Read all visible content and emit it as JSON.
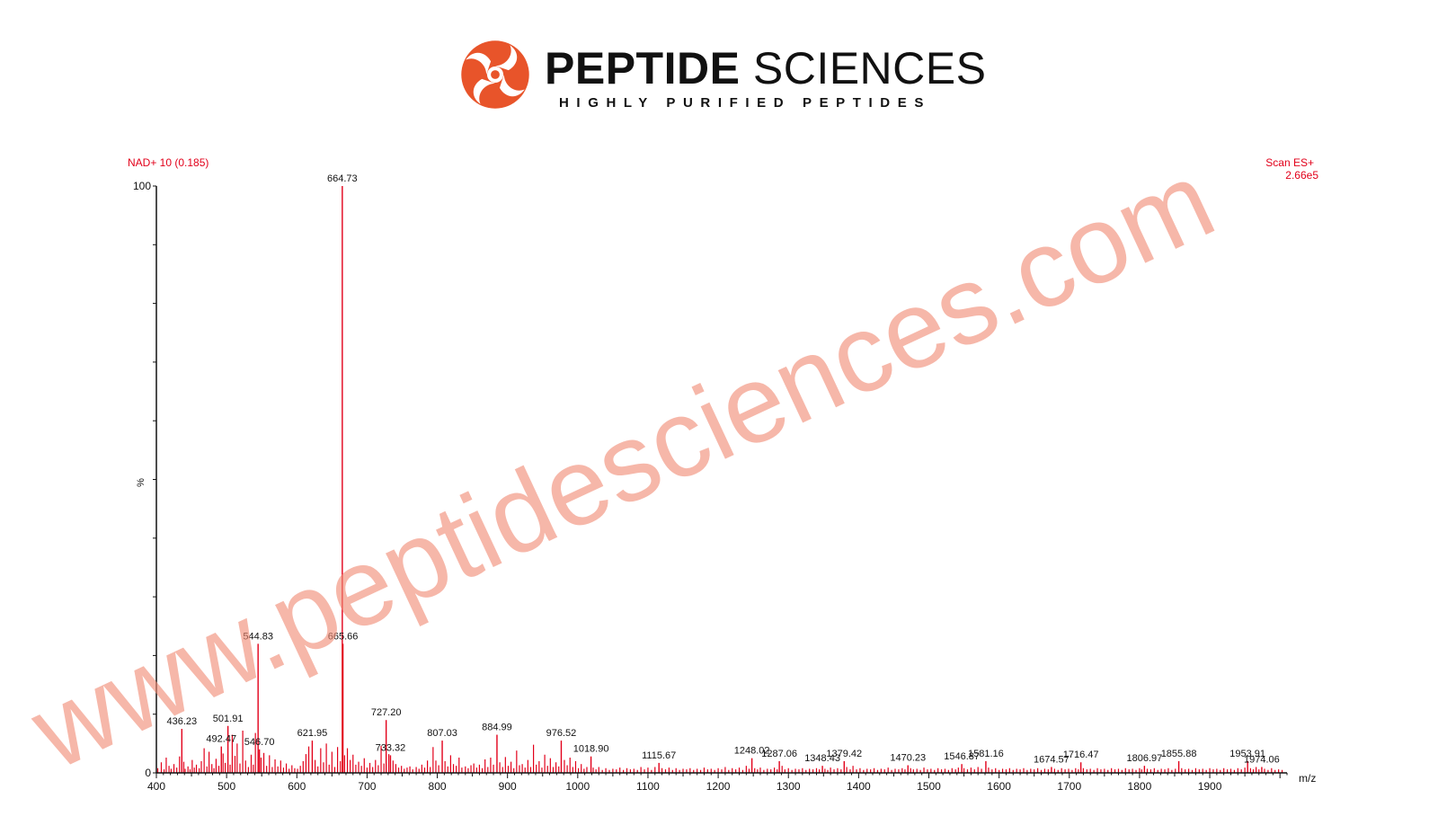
{
  "brand": {
    "name_bold": "PEPTIDE",
    "name_light": "SCIENCES",
    "tagline": "HIGHLY PURIFIED PEPTIDES",
    "logo_icon": "spiral-swirl-logo-icon",
    "logo_color": "#e8542a"
  },
  "watermark": {
    "text": "www.peptidesciences.com",
    "color": "#f08a75"
  },
  "chart_data": {
    "type": "bar",
    "title": "NAD+ 10 (0.185)",
    "scan_label": "Scan ES+",
    "scan_intensity": "2.66e5",
    "xlabel": "m/z",
    "ylabel": "%",
    "xlim": [
      400,
      2010
    ],
    "ylim": [
      0,
      100
    ],
    "x_ticks": [
      400,
      500,
      600,
      700,
      800,
      900,
      1000,
      1100,
      1200,
      1300,
      1400,
      1500,
      1600,
      1700,
      1800,
      1900
    ],
    "y_ticks": [
      0,
      100
    ],
    "series_color": "#e2001a",
    "peaks": [
      {
        "mz": 436.23,
        "intensity": 7.5,
        "label": "436.23"
      },
      {
        "mz": 492.47,
        "intensity": 4.5,
        "label": "492.47"
      },
      {
        "mz": 501.91,
        "intensity": 8.0,
        "label": "501.91"
      },
      {
        "mz": 544.83,
        "intensity": 22.0,
        "label": "544.83"
      },
      {
        "mz": 546.7,
        "intensity": 4.0,
        "label": "546.70"
      },
      {
        "mz": 621.95,
        "intensity": 5.5,
        "label": "621.95"
      },
      {
        "mz": 664.73,
        "intensity": 100,
        "label": "664.73"
      },
      {
        "mz": 665.66,
        "intensity": 22.0,
        "label": "665.66"
      },
      {
        "mz": 727.2,
        "intensity": 9.0,
        "label": "727.20"
      },
      {
        "mz": 733.32,
        "intensity": 3.0,
        "label": "733.32"
      },
      {
        "mz": 807.03,
        "intensity": 5.5,
        "label": "807.03"
      },
      {
        "mz": 884.99,
        "intensity": 6.5,
        "label": "884.99"
      },
      {
        "mz": 976.52,
        "intensity": 5.5,
        "label": "976.52"
      },
      {
        "mz": 1018.9,
        "intensity": 2.8,
        "label": "1018.90"
      },
      {
        "mz": 1115.67,
        "intensity": 1.7,
        "label": "1115.67"
      },
      {
        "mz": 1248.02,
        "intensity": 2.5,
        "label": "1248.02"
      },
      {
        "mz": 1287.06,
        "intensity": 2.0,
        "label": "1287.06"
      },
      {
        "mz": 1348.43,
        "intensity": 1.2,
        "label": "1348.43"
      },
      {
        "mz": 1379.42,
        "intensity": 2.0,
        "label": "1379.42"
      },
      {
        "mz": 1470.23,
        "intensity": 1.3,
        "label": "1470.23"
      },
      {
        "mz": 1546.87,
        "intensity": 1.5,
        "label": "1546.87"
      },
      {
        "mz": 1581.16,
        "intensity": 2.0,
        "label": "1581.16"
      },
      {
        "mz": 1674.57,
        "intensity": 1.0,
        "label": "1674.57"
      },
      {
        "mz": 1716.47,
        "intensity": 1.8,
        "label": "1716.47"
      },
      {
        "mz": 1806.97,
        "intensity": 1.2,
        "label": "1806.97"
      },
      {
        "mz": 1855.88,
        "intensity": 2.0,
        "label": "1855.88"
      },
      {
        "mz": 1953.91,
        "intensity": 2.0,
        "label": "1953.91"
      },
      {
        "mz": 1974.06,
        "intensity": 1.0,
        "label": "1974.06"
      }
    ],
    "minor_peaks": [
      [
        402,
        0.8
      ],
      [
        407,
        1.8
      ],
      [
        411,
        0.6
      ],
      [
        414,
        2.6
      ],
      [
        418,
        1.2
      ],
      [
        421,
        0.7
      ],
      [
        425,
        1.5
      ],
      [
        429,
        0.9
      ],
      [
        433,
        2.8
      ],
      [
        439,
        1.9
      ],
      [
        441,
        0.7
      ],
      [
        445,
        1.1
      ],
      [
        448,
        0.6
      ],
      [
        451,
        2.2
      ],
      [
        454,
        0.9
      ],
      [
        457,
        1.4
      ],
      [
        461,
        0.8
      ],
      [
        464,
        2.0
      ],
      [
        468,
        4.2
      ],
      [
        472,
        1.1
      ],
      [
        475,
        3.6
      ],
      [
        479,
        1.5
      ],
      [
        482,
        0.8
      ],
      [
        485,
        2.4
      ],
      [
        489,
        1.2
      ],
      [
        495,
        3.3
      ],
      [
        498,
        1.7
      ],
      [
        505,
        1.4
      ],
      [
        508,
        6.5
      ],
      [
        512,
        2.9
      ],
      [
        515,
        5.0
      ],
      [
        519,
        1.6
      ],
      [
        523,
        7.2
      ],
      [
        527,
        2.1
      ],
      [
        531,
        1.0
      ],
      [
        535,
        3.1
      ],
      [
        538,
        1.4
      ],
      [
        541,
        6.8
      ],
      [
        549,
        2.6
      ],
      [
        553,
        3.4
      ],
      [
        557,
        1.2
      ],
      [
        561,
        3.0
      ],
      [
        565,
        1.0
      ],
      [
        569,
        2.3
      ],
      [
        573,
        1.1
      ],
      [
        577,
        2.1
      ],
      [
        581,
        0.9
      ],
      [
        585,
        1.6
      ],
      [
        589,
        0.7
      ],
      [
        593,
        1.3
      ],
      [
        597,
        0.8
      ],
      [
        601,
        0.7
      ],
      [
        605,
        1.2
      ],
      [
        609,
        2.0
      ],
      [
        613,
        3.2
      ],
      [
        617,
        4.5
      ],
      [
        626,
        2.2
      ],
      [
        630,
        1.1
      ],
      [
        634,
        4.2
      ],
      [
        638,
        1.8
      ],
      [
        642,
        5.0
      ],
      [
        646,
        1.4
      ],
      [
        650,
        3.6
      ],
      [
        654,
        1.0
      ],
      [
        658,
        4.4
      ],
      [
        662,
        2.0
      ],
      [
        668,
        3.0
      ],
      [
        672,
        4.2
      ],
      [
        676,
        2.2
      ],
      [
        680,
        3.1
      ],
      [
        684,
        1.4
      ],
      [
        688,
        1.9
      ],
      [
        692,
        1.2
      ],
      [
        696,
        2.5
      ],
      [
        700,
        0.9
      ],
      [
        704,
        1.7
      ],
      [
        708,
        1.0
      ],
      [
        712,
        2.2
      ],
      [
        716,
        1.3
      ],
      [
        720,
        4.6
      ],
      [
        724,
        1.6
      ],
      [
        731,
        3.2
      ],
      [
        737,
        2.1
      ],
      [
        741,
        1.5
      ],
      [
        745,
        0.9
      ],
      [
        749,
        1.2
      ],
      [
        753,
        0.7
      ],
      [
        757,
        0.9
      ],
      [
        761,
        1.1
      ],
      [
        765,
        0.6
      ],
      [
        770,
        1.0
      ],
      [
        774,
        0.7
      ],
      [
        778,
        1.4
      ],
      [
        782,
        0.9
      ],
      [
        786,
        2.1
      ],
      [
        790,
        1.0
      ],
      [
        794,
        4.4
      ],
      [
        798,
        2.1
      ],
      [
        802,
        1.3
      ],
      [
        811,
        2.0
      ],
      [
        815,
        1.1
      ],
      [
        819,
        3.0
      ],
      [
        823,
        1.5
      ],
      [
        827,
        1.2
      ],
      [
        831,
        2.6
      ],
      [
        835,
        0.9
      ],
      [
        840,
        1.1
      ],
      [
        844,
        0.8
      ],
      [
        848,
        1.3
      ],
      [
        852,
        1.6
      ],
      [
        856,
        0.9
      ],
      [
        860,
        1.4
      ],
      [
        864,
        0.8
      ],
      [
        868,
        2.3
      ],
      [
        872,
        1.0
      ],
      [
        876,
        2.6
      ],
      [
        880,
        1.4
      ],
      [
        889,
        1.8
      ],
      [
        893,
        1.0
      ],
      [
        897,
        2.7
      ],
      [
        901,
        1.2
      ],
      [
        905,
        1.9
      ],
      [
        909,
        0.8
      ],
      [
        913,
        3.8
      ],
      [
        917,
        1.3
      ],
      [
        921,
        1.5
      ],
      [
        925,
        0.9
      ],
      [
        929,
        2.2
      ],
      [
        933,
        1.0
      ],
      [
        937,
        4.8
      ],
      [
        941,
        1.4
      ],
      [
        945,
        2.0
      ],
      [
        949,
        0.9
      ],
      [
        953,
        3.1
      ],
      [
        957,
        1.2
      ],
      [
        961,
        2.5
      ],
      [
        965,
        1.0
      ],
      [
        969,
        1.8
      ],
      [
        973,
        1.1
      ],
      [
        981,
        2.2
      ],
      [
        985,
        1.3
      ],
      [
        989,
        2.6
      ],
      [
        993,
        1.0
      ],
      [
        997,
        2.0
      ],
      [
        1001,
        0.8
      ],
      [
        1005,
        1.5
      ],
      [
        1009,
        0.7
      ],
      [
        1013,
        1.0
      ],
      [
        1022,
        0.9
      ],
      [
        1026,
        0.6
      ],
      [
        1030,
        1.0
      ],
      [
        1035,
        0.5
      ],
      [
        1040,
        0.8
      ],
      [
        1045,
        0.5
      ],
      [
        1050,
        0.7
      ],
      [
        1055,
        0.6
      ],
      [
        1060,
        0.9
      ],
      [
        1065,
        0.5
      ],
      [
        1070,
        0.8
      ],
      [
        1075,
        0.6
      ],
      [
        1080,
        0.7
      ],
      [
        1085,
        0.5
      ],
      [
        1090,
        1.0
      ],
      [
        1095,
        0.6
      ],
      [
        1100,
        0.9
      ],
      [
        1105,
        0.5
      ],
      [
        1110,
        1.0
      ],
      [
        1120,
        0.8
      ],
      [
        1125,
        0.6
      ],
      [
        1130,
        0.9
      ],
      [
        1135,
        0.5
      ],
      [
        1140,
        0.8
      ],
      [
        1145,
        0.5
      ],
      [
        1150,
        0.7
      ],
      [
        1155,
        0.6
      ],
      [
        1160,
        0.8
      ],
      [
        1165,
        0.5
      ],
      [
        1170,
        0.7
      ],
      [
        1175,
        0.5
      ],
      [
        1180,
        0.9
      ],
      [
        1185,
        0.6
      ],
      [
        1190,
        0.7
      ],
      [
        1195,
        0.5
      ],
      [
        1200,
        0.8
      ],
      [
        1205,
        0.6
      ],
      [
        1210,
        1.0
      ],
      [
        1215,
        0.5
      ],
      [
        1220,
        0.8
      ],
      [
        1225,
        0.6
      ],
      [
        1230,
        0.9
      ],
      [
        1235,
        0.5
      ],
      [
        1240,
        1.2
      ],
      [
        1244,
        0.7
      ],
      [
        1252,
        0.8
      ],
      [
        1256,
        0.6
      ],
      [
        1260,
        0.9
      ],
      [
        1265,
        0.5
      ],
      [
        1270,
        0.7
      ],
      [
        1275,
        0.6
      ],
      [
        1280,
        0.9
      ],
      [
        1284,
        0.6
      ],
      [
        1291,
        1.2
      ],
      [
        1295,
        0.6
      ],
      [
        1300,
        0.8
      ],
      [
        1305,
        0.5
      ],
      [
        1310,
        0.7
      ],
      [
        1315,
        0.6
      ],
      [
        1320,
        0.8
      ],
      [
        1325,
        0.5
      ],
      [
        1330,
        0.7
      ],
      [
        1335,
        0.6
      ],
      [
        1340,
        0.8
      ],
      [
        1344,
        0.6
      ],
      [
        1352,
        0.7
      ],
      [
        1356,
        0.5
      ],
      [
        1360,
        0.9
      ],
      [
        1365,
        0.6
      ],
      [
        1370,
        0.8
      ],
      [
        1375,
        0.6
      ],
      [
        1383,
        1.0
      ],
      [
        1388,
        0.6
      ],
      [
        1392,
        1.2
      ],
      [
        1397,
        0.6
      ],
      [
        1402,
        0.8
      ],
      [
        1407,
        0.5
      ],
      [
        1412,
        0.7
      ],
      [
        1417,
        0.6
      ],
      [
        1422,
        0.8
      ],
      [
        1427,
        0.5
      ],
      [
        1432,
        0.7
      ],
      [
        1437,
        0.6
      ],
      [
        1442,
        0.9
      ],
      [
        1447,
        0.5
      ],
      [
        1452,
        0.7
      ],
      [
        1457,
        0.6
      ],
      [
        1462,
        0.8
      ],
      [
        1466,
        0.6
      ],
      [
        1474,
        0.8
      ],
      [
        1478,
        0.6
      ],
      [
        1483,
        0.7
      ],
      [
        1488,
        0.5
      ],
      [
        1493,
        0.9
      ],
      [
        1498,
        0.6
      ],
      [
        1503,
        0.7
      ],
      [
        1508,
        0.5
      ],
      [
        1513,
        0.8
      ],
      [
        1518,
        0.6
      ],
      [
        1523,
        0.7
      ],
      [
        1528,
        0.5
      ],
      [
        1533,
        0.8
      ],
      [
        1538,
        0.6
      ],
      [
        1542,
        0.9
      ],
      [
        1550,
        0.8
      ],
      [
        1555,
        0.6
      ],
      [
        1560,
        0.9
      ],
      [
        1565,
        0.6
      ],
      [
        1570,
        1.0
      ],
      [
        1575,
        0.7
      ],
      [
        1585,
        0.9
      ],
      [
        1590,
        0.6
      ],
      [
        1595,
        0.8
      ],
      [
        1600,
        0.5
      ],
      [
        1605,
        0.7
      ],
      [
        1610,
        0.6
      ],
      [
        1615,
        0.8
      ],
      [
        1620,
        0.5
      ],
      [
        1625,
        0.7
      ],
      [
        1630,
        0.6
      ],
      [
        1635,
        0.8
      ],
      [
        1640,
        0.5
      ],
      [
        1645,
        0.7
      ],
      [
        1650,
        0.6
      ],
      [
        1655,
        0.8
      ],
      [
        1660,
        0.5
      ],
      [
        1665,
        0.7
      ],
      [
        1670,
        0.6
      ],
      [
        1679,
        0.7
      ],
      [
        1684,
        0.5
      ],
      [
        1689,
        0.8
      ],
      [
        1694,
        0.6
      ],
      [
        1699,
        0.7
      ],
      [
        1704,
        0.5
      ],
      [
        1709,
        0.8
      ],
      [
        1713,
        0.6
      ],
      [
        1720,
        0.8
      ],
      [
        1725,
        0.6
      ],
      [
        1730,
        0.7
      ],
      [
        1735,
        0.5
      ],
      [
        1740,
        0.8
      ],
      [
        1745,
        0.6
      ],
      [
        1750,
        0.7
      ],
      [
        1755,
        0.5
      ],
      [
        1760,
        0.8
      ],
      [
        1765,
        0.6
      ],
      [
        1770,
        0.7
      ],
      [
        1775,
        0.5
      ],
      [
        1780,
        0.8
      ],
      [
        1785,
        0.6
      ],
      [
        1790,
        0.7
      ],
      [
        1795,
        0.5
      ],
      [
        1800,
        0.8
      ],
      [
        1803,
        0.6
      ],
      [
        1811,
        0.7
      ],
      [
        1816,
        0.6
      ],
      [
        1821,
        0.8
      ],
      [
        1826,
        0.5
      ],
      [
        1831,
        0.7
      ],
      [
        1836,
        0.6
      ],
      [
        1841,
        0.8
      ],
      [
        1846,
        0.5
      ],
      [
        1851,
        0.7
      ],
      [
        1860,
        0.8
      ],
      [
        1865,
        0.6
      ],
      [
        1870,
        0.7
      ],
      [
        1875,
        0.5
      ],
      [
        1880,
        0.8
      ],
      [
        1885,
        0.6
      ],
      [
        1890,
        0.7
      ],
      [
        1895,
        0.5
      ],
      [
        1900,
        0.8
      ],
      [
        1905,
        0.6
      ],
      [
        1910,
        0.7
      ],
      [
        1915,
        0.5
      ],
      [
        1920,
        0.8
      ],
      [
        1925,
        0.6
      ],
      [
        1930,
        0.7
      ],
      [
        1935,
        0.5
      ],
      [
        1940,
        0.8
      ],
      [
        1945,
        0.6
      ],
      [
        1950,
        0.9
      ],
      [
        1958,
        0.8
      ],
      [
        1962,
        0.6
      ],
      [
        1966,
        1.0
      ],
      [
        1970,
        0.6
      ],
      [
        1978,
        0.7
      ],
      [
        1983,
        0.5
      ],
      [
        1988,
        0.8
      ],
      [
        1993,
        0.5
      ],
      [
        1998,
        0.6
      ],
      [
        2003,
        0.5
      ]
    ]
  }
}
